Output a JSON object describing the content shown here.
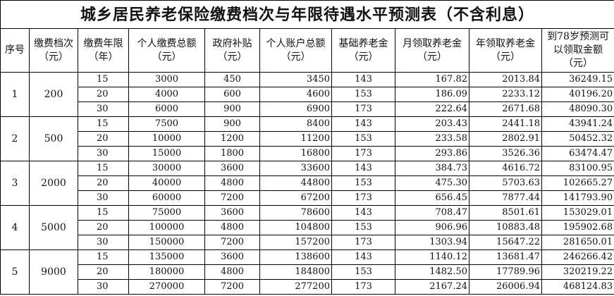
{
  "title": "城乡居民养老保险缴费档次与年限待遇水平预测表（不含利息）",
  "headers": [
    "序号",
    "缴费档次（元）",
    "缴费年限（年）",
    "个人缴费总额（元）",
    "政府补贴（元）",
    "个人账户总额（元）",
    "基础养老金（元）",
    "月领取养老金（元）",
    "年领取养老金（元）",
    "到78岁预测可以领取金额（元）"
  ],
  "groups": [
    {
      "seq": "1",
      "level": "200",
      "rows": [
        [
          "15",
          "3000",
          "450",
          "3450",
          "143",
          "167.82",
          "2013.84",
          "36249.15"
        ],
        [
          "20",
          "4000",
          "600",
          "4600",
          "153",
          "186.09",
          "2233.12",
          "40196.20"
        ],
        [
          "30",
          "6000",
          "900",
          "6900",
          "173",
          "222.64",
          "2671.68",
          "48090.30"
        ]
      ]
    },
    {
      "seq": "2",
      "level": "500",
      "rows": [
        [
          "15",
          "7500",
          "900",
          "8400",
          "143",
          "203.43",
          "2441.18",
          "43941.24"
        ],
        [
          "20",
          "10000",
          "1200",
          "11200",
          "153",
          "233.58",
          "2802.91",
          "50452.32"
        ],
        [
          "30",
          "15000",
          "1800",
          "16800",
          "173",
          "293.86",
          "3526.36",
          "63474.47"
        ]
      ]
    },
    {
      "seq": "3",
      "level": "2000",
      "rows": [
        [
          "15",
          "30000",
          "3600",
          "33600",
          "143",
          "384.73",
          "4616.72",
          "83100.95"
        ],
        [
          "20",
          "40000",
          "4800",
          "44800",
          "153",
          "475.30",
          "5703.63",
          "102665.27"
        ],
        [
          "30",
          "60000",
          "7200",
          "67200",
          "173",
          "656.45",
          "7877.44",
          "141793.90"
        ]
      ]
    },
    {
      "seq": "4",
      "level": "5000",
      "rows": [
        [
          "15",
          "75000",
          "3600",
          "78600",
          "143",
          "708.47",
          "8501.61",
          "153029.01"
        ],
        [
          "20",
          "100000",
          "4800",
          "104800",
          "153",
          "906.96",
          "10883.48",
          "195902.68"
        ],
        [
          "30",
          "150000",
          "7200",
          "157200",
          "173",
          "1303.94",
          "15647.22",
          "281650.01"
        ]
      ]
    },
    {
      "seq": "5",
      "level": "9000",
      "rows": [
        [
          "15",
          "135000",
          "3600",
          "138600",
          "143",
          "1140.12",
          "13681.47",
          "246266.42"
        ],
        [
          "20",
          "180000",
          "4800",
          "184800",
          "153",
          "1482.50",
          "17789.96",
          "320219.22"
        ],
        [
          "30",
          "270000",
          "7200",
          "277200",
          "173",
          "2167.24",
          "26006.94",
          "468124.83"
        ]
      ]
    }
  ]
}
